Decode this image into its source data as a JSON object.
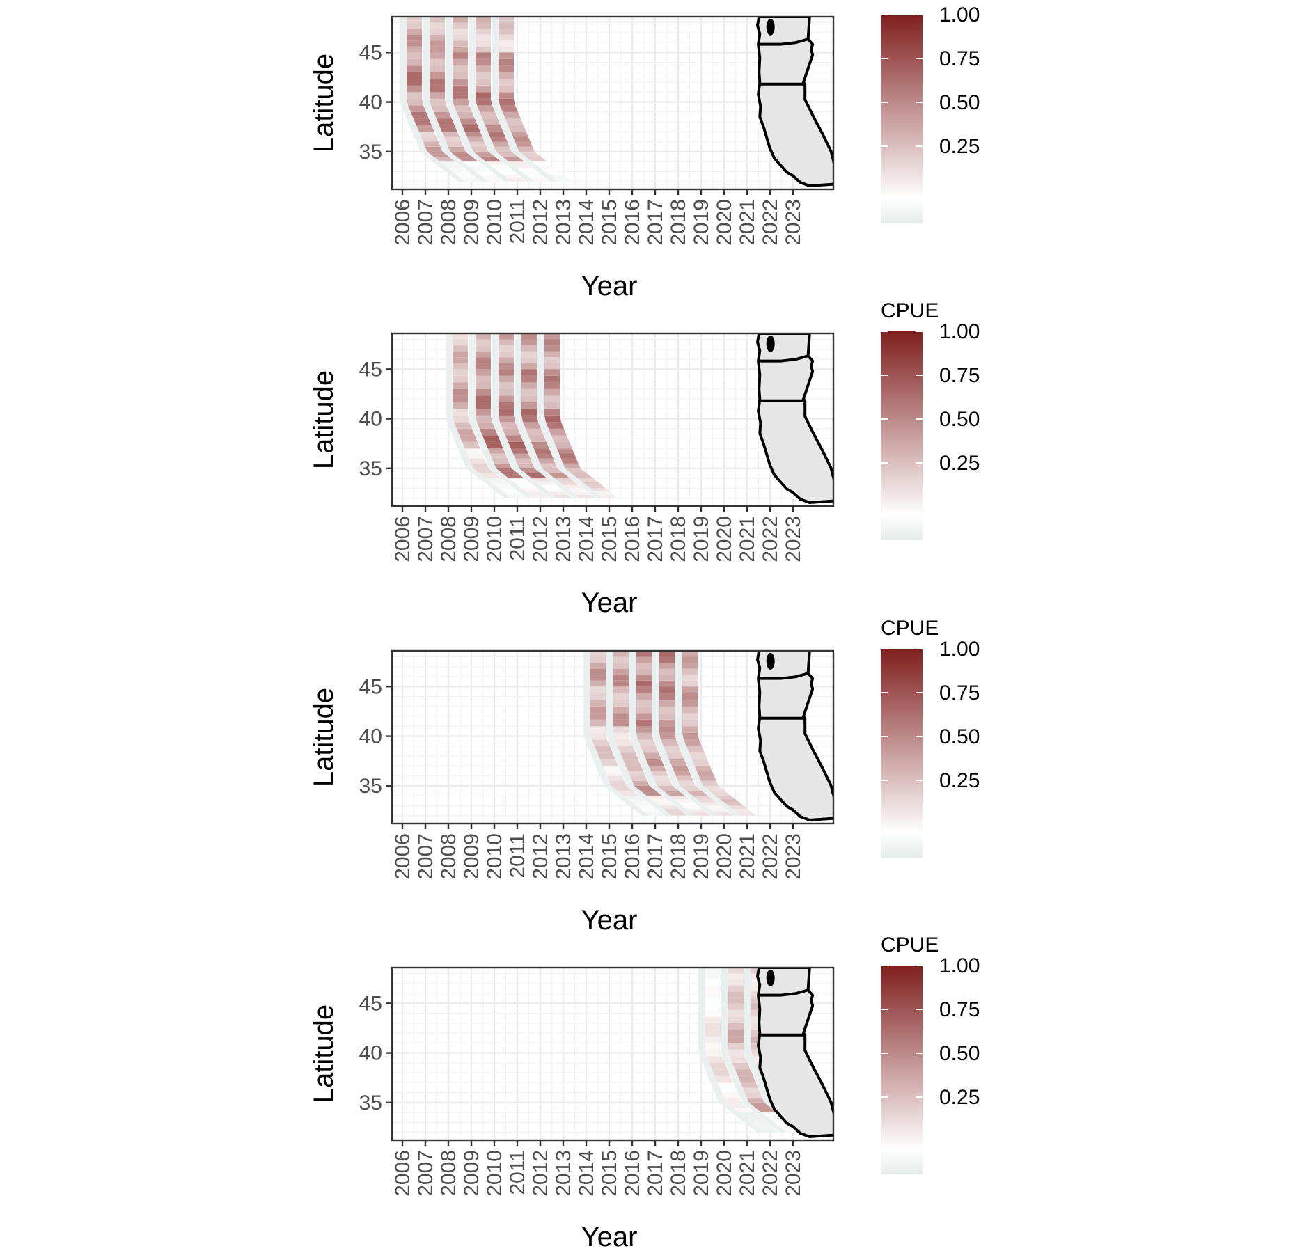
{
  "chart_data": [
    {
      "type": "heatmap",
      "xlabel": "Year",
      "ylabel": "Latitude",
      "x_ticks": [
        "2006",
        "2007",
        "2008",
        "2009",
        "2010",
        "2011",
        "2012",
        "2013",
        "2014",
        "2015",
        "2016",
        "2017",
        "2018",
        "2019",
        "2020",
        "2021",
        "2022",
        "2023"
      ],
      "y_ticks": [
        35,
        40,
        45
      ],
      "ylim": [
        31.2,
        48.6
      ],
      "legend_title": "",
      "legend_ticks": [
        "1.00",
        "0.75",
        "0.50",
        "0.25"
      ],
      "legend_range": [
        0,
        1
      ],
      "legend_placement": "right",
      "color_low": "#e4ecea",
      "color_mid": "#ffffff",
      "color_high": "#7f1f1d",
      "grid": true,
      "inset_map": "Washington, Oregon, California outline",
      "surveys": [
        {
          "start_year": 2006.0,
          "cpue_level": [
            0.1,
            0.55,
            0.7,
            0.75,
            0.6
          ]
        },
        {
          "start_year": 2007.0,
          "cpue_level": [
            0.15,
            0.6,
            0.7,
            0.7,
            0.55
          ]
        },
        {
          "start_year": 2008.0,
          "cpue_level": [
            0.2,
            0.65,
            0.75,
            0.7,
            0.5
          ]
        },
        {
          "start_year": 2009.0,
          "cpue_level": [
            0.2,
            0.7,
            0.75,
            0.65,
            0.45
          ]
        },
        {
          "start_year": 2010.0,
          "cpue_level": [
            0.15,
            0.6,
            0.7,
            0.65,
            0.4
          ]
        }
      ]
    },
    {
      "type": "heatmap",
      "xlabel": "Year",
      "ylabel": "Latitude",
      "x_ticks": [
        "2006",
        "2007",
        "2008",
        "2009",
        "2010",
        "2011",
        "2012",
        "2013",
        "2014",
        "2015",
        "2016",
        "2017",
        "2018",
        "2019",
        "2020",
        "2021",
        "2022",
        "2023"
      ],
      "y_ticks": [
        35,
        40,
        45
      ],
      "ylim": [
        31.2,
        48.6
      ],
      "legend_title": "CPUE",
      "legend_ticks": [
        "1.00",
        "0.75",
        "0.50",
        "0.25"
      ],
      "legend_range": [
        0,
        1
      ],
      "legend_placement": "right",
      "color_low": "#e4ecea",
      "color_mid": "#ffffff",
      "color_high": "#7f1f1d",
      "grid": true,
      "inset_map": "Washington, Oregon, California outline",
      "surveys": [
        {
          "start_year": 2008.0,
          "cpue_level": [
            0.1,
            0.3,
            0.5,
            0.6,
            0.5
          ]
        },
        {
          "start_year": 2009.0,
          "cpue_level": [
            0.2,
            0.7,
            0.8,
            0.75,
            0.65
          ]
        },
        {
          "start_year": 2010.0,
          "cpue_level": [
            0.25,
            0.75,
            0.8,
            0.7,
            0.6
          ]
        },
        {
          "start_year": 2011.0,
          "cpue_level": [
            0.3,
            0.7,
            0.75,
            0.7,
            0.6
          ]
        },
        {
          "start_year": 2012.0,
          "cpue_level": [
            0.35,
            0.7,
            0.75,
            0.7,
            0.65
          ]
        }
      ]
    },
    {
      "type": "heatmap",
      "xlabel": "Year",
      "ylabel": "Latitude",
      "x_ticks": [
        "2006",
        "2007",
        "2008",
        "2009",
        "2010",
        "2011",
        "2012",
        "2013",
        "2014",
        "2015",
        "2016",
        "2017",
        "2018",
        "2019",
        "2020",
        "2021",
        "2022",
        "2023"
      ],
      "y_ticks": [
        35,
        40,
        45
      ],
      "ylim": [
        31.2,
        48.6
      ],
      "legend_title": "CPUE",
      "legend_ticks": [
        "1.00",
        "0.75",
        "0.50",
        "0.25"
      ],
      "legend_range": [
        0,
        1
      ],
      "legend_placement": "right",
      "color_low": "#e4ecea",
      "color_mid": "#ffffff",
      "color_high": "#7f1f1d",
      "grid": true,
      "inset_map": "Washington, Oregon, California outline",
      "surveys": [
        {
          "start_year": 2014.0,
          "cpue_level": [
            0.1,
            0.3,
            0.4,
            0.55,
            0.6
          ]
        },
        {
          "start_year": 2015.0,
          "cpue_level": [
            0.3,
            0.6,
            0.4,
            0.6,
            0.65
          ]
        },
        {
          "start_year": 2016.0,
          "cpue_level": [
            0.25,
            0.5,
            0.6,
            0.7,
            0.75
          ]
        },
        {
          "start_year": 2017.0,
          "cpue_level": [
            0.3,
            0.55,
            0.6,
            0.7,
            0.75
          ]
        },
        {
          "start_year": 2018.0,
          "cpue_level": [
            0.4,
            0.5,
            0.55,
            0.6,
            0.55
          ]
        }
      ]
    },
    {
      "type": "heatmap",
      "xlabel": "Year",
      "ylabel": "Latitude",
      "x_ticks": [
        "2006",
        "2007",
        "2008",
        "2009",
        "2010",
        "2011",
        "2012",
        "2013",
        "2014",
        "2015",
        "2016",
        "2017",
        "2018",
        "2019",
        "2020",
        "2021",
        "2022",
        "2023"
      ],
      "y_ticks": [
        35,
        40,
        45
      ],
      "ylim": [
        31.2,
        48.6
      ],
      "legend_title": "CPUE",
      "legend_ticks": [
        "1.00",
        "0.75",
        "0.50",
        "0.25"
      ],
      "legend_range": [
        0,
        1
      ],
      "legend_placement": "right",
      "color_low": "#e4ecea",
      "color_mid": "#ffffff",
      "color_high": "#7f1f1d",
      "grid": true,
      "inset_map": "Washington, Oregon, California outline",
      "surveys": [
        {
          "start_year": 2019.0,
          "cpue_level": [
            0.05,
            0.2,
            0.3,
            0.25,
            0.15
          ]
        },
        {
          "start_year": 2020.0,
          "cpue_level": [
            0.15,
            0.55,
            0.45,
            0.5,
            0.4
          ]
        },
        {
          "start_year": 2021.0,
          "cpue_level": [
            0.1,
            0.35,
            0.4,
            0.45,
            0.35
          ]
        },
        {
          "start_year": 2022.0,
          "cpue_level": [
            0.6,
            0.5,
            0.4,
            0.35,
            0.3
          ]
        }
      ]
    }
  ]
}
